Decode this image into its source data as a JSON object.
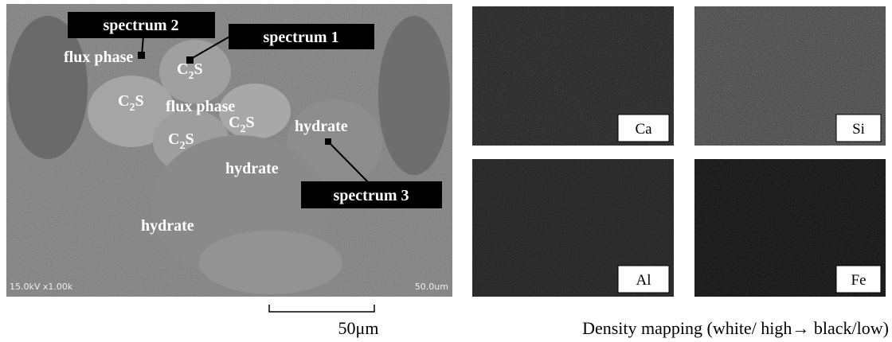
{
  "sem_image": {
    "info": "15.0kV x1.00k",
    "scale_text": "50.0um",
    "callouts": [
      {
        "text": "spectrum 2"
      },
      {
        "text": "spectrum 1"
      },
      {
        "text": "spectrum 3"
      }
    ],
    "phase_labels": [
      "flux phase",
      "flux phase",
      "hydrate",
      "hydrate",
      "hydrate"
    ],
    "c2s_labels": [
      {
        "main": "C",
        "sub": "2",
        "tail": "S"
      },
      {
        "main": "C",
        "sub": "2",
        "tail": "S"
      },
      {
        "main": "C",
        "sub": "2",
        "tail": "S"
      },
      {
        "main": "C",
        "sub": "2",
        "tail": "S"
      }
    ]
  },
  "scale_bar": "50μm",
  "maps": [
    {
      "element": "Ca"
    },
    {
      "element": "Si"
    },
    {
      "element": "Al"
    },
    {
      "element": "Fe"
    }
  ],
  "caption": "Density mapping (white/ high→ black/low)"
}
